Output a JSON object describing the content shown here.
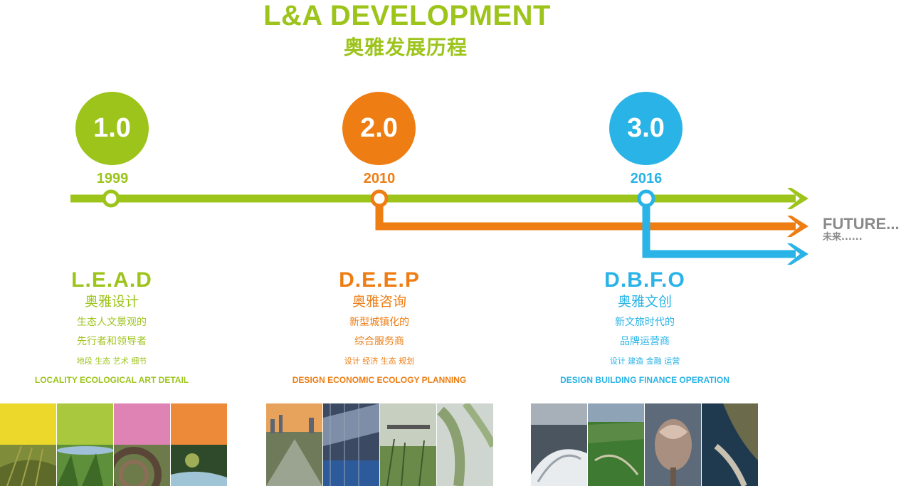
{
  "header": {
    "title_en": "L&A DEVELOPMENT",
    "title_cn": "奥雅发展历程"
  },
  "colors": {
    "green": "#9dc41a",
    "orange": "#ee7d13",
    "blue": "#29b3e6",
    "grey": "#8a8a8a"
  },
  "stages": [
    {
      "version": "1.0",
      "year": "1999",
      "acronym": "L.E.A.D",
      "name": "奥雅设计",
      "desc_line1": "生态人文景观的",
      "desc_line2": "先行者和领导者",
      "tags": "地段 生态 艺术 细节",
      "english": "LOCALITY ECOLOGICAL ART DETAIL",
      "color": "#9dc41a"
    },
    {
      "version": "2.0",
      "year": "2010",
      "acronym": "D.E.E.P",
      "name": "奥雅咨询",
      "desc_line1": "新型城镇化的",
      "desc_line2": "综合服务商",
      "tags": "设计 经济 生态 规划",
      "english": "DESIGN ECONOMIC ECOLOGY PLANNING",
      "color": "#ee7d13"
    },
    {
      "version": "3.0",
      "year": "2016",
      "acronym": "D.B.F.O",
      "name": "奥雅文创",
      "desc_line1": "新文旅时代的",
      "desc_line2": "品牌运营商",
      "tags": "设计 建造 金融 运营",
      "english": "DESIGN BUILDING FINANCE OPERATION",
      "color": "#29b3e6"
    }
  ],
  "future": {
    "label_en": "FUTURE...",
    "label_cn": "未来......"
  }
}
